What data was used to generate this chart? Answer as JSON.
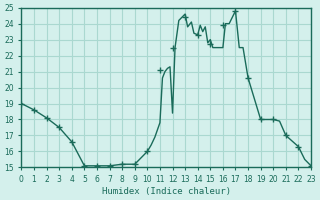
{
  "xlabel": "Humidex (Indice chaleur)",
  "ylabel": "",
  "background_color": "#d4f0ec",
  "grid_color": "#aad8d0",
  "line_color": "#1a6b5a",
  "marker_color": "#1a6b5a",
  "xlim": [
    0,
    23
  ],
  "ylim": [
    15,
    25
  ],
  "yticks": [
    15,
    16,
    17,
    18,
    19,
    20,
    21,
    22,
    23,
    24,
    25
  ],
  "xticks": [
    0,
    1,
    2,
    3,
    4,
    5,
    6,
    7,
    8,
    9,
    10,
    11,
    12,
    13,
    14,
    15,
    16,
    17,
    18,
    19,
    20,
    21,
    22,
    23
  ],
  "x": [
    0,
    1,
    2,
    3,
    4,
    5,
    6,
    7,
    8,
    9,
    10,
    10.3,
    10.6,
    11,
    11.2,
    11.4,
    11.6,
    11.8,
    12,
    12.2,
    12.5,
    13,
    13.2,
    13.5,
    13.7,
    14,
    14.2,
    14.4,
    14.6,
    14.8,
    15,
    15.2,
    15.5,
    16,
    16.2,
    16.5,
    17,
    17.3,
    17.6,
    18,
    19,
    20,
    20.5,
    21,
    22,
    22.5,
    23
  ],
  "y": [
    19.0,
    18.6,
    18.1,
    17.5,
    16.6,
    15.1,
    15.1,
    15.1,
    15.2,
    15.2,
    16.0,
    16.4,
    16.9,
    17.8,
    20.6,
    21.0,
    21.2,
    21.3,
    18.4,
    22.5,
    24.2,
    24.6,
    23.8,
    24.1,
    23.4,
    23.3,
    23.9,
    23.5,
    23.8,
    22.8,
    23.0,
    22.5,
    22.5,
    22.5,
    24.0,
    24.0,
    24.8,
    22.5,
    22.5,
    20.6,
    18.0,
    18.0,
    17.9,
    17.0,
    16.3,
    15.5,
    15.1
  ],
  "marker_x": [
    0,
    1,
    2,
    3,
    4,
    5,
    6,
    7,
    8,
    9,
    10,
    11,
    12,
    13,
    14,
    15,
    16,
    17,
    18,
    19,
    20,
    21,
    22,
    23
  ],
  "marker_y": [
    19.0,
    18.6,
    18.1,
    17.5,
    16.6,
    15.1,
    15.1,
    15.1,
    15.2,
    15.2,
    16.0,
    21.1,
    22.5,
    24.4,
    23.3,
    22.7,
    23.9,
    24.8,
    20.6,
    18.0,
    18.0,
    17.0,
    16.3,
    15.1
  ]
}
